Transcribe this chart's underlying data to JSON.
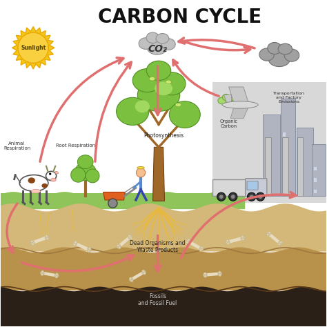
{
  "title": "CARBON CYCLE",
  "title_fontsize": 20,
  "title_fontweight": "bold",
  "bg_color": "#ffffff",
  "arrow_color": "#e07070",
  "arrow_lw": 2.5,
  "grass_color": "#8fc45a",
  "ground1_color": "#d4b87a",
  "ground2_color": "#b8924a",
  "ground3_color": "#2a2018",
  "sun_color": "#f5c518",
  "sun_ring_color": "#e8a800",
  "labels": {
    "sunlight": "Sunlight",
    "co2": "CO₂",
    "photosynthesis": "Photosynthesis",
    "organic_carbon": "Organic\nCarbon",
    "transport": "Transportation\nand Factory\nEmissions",
    "animal": "Animal\nRespiration",
    "root": "Root Respiration",
    "dead": "Dead Organisms and\nWaste Products",
    "fossil": "Fossils\nand Fossil Fuel"
  }
}
